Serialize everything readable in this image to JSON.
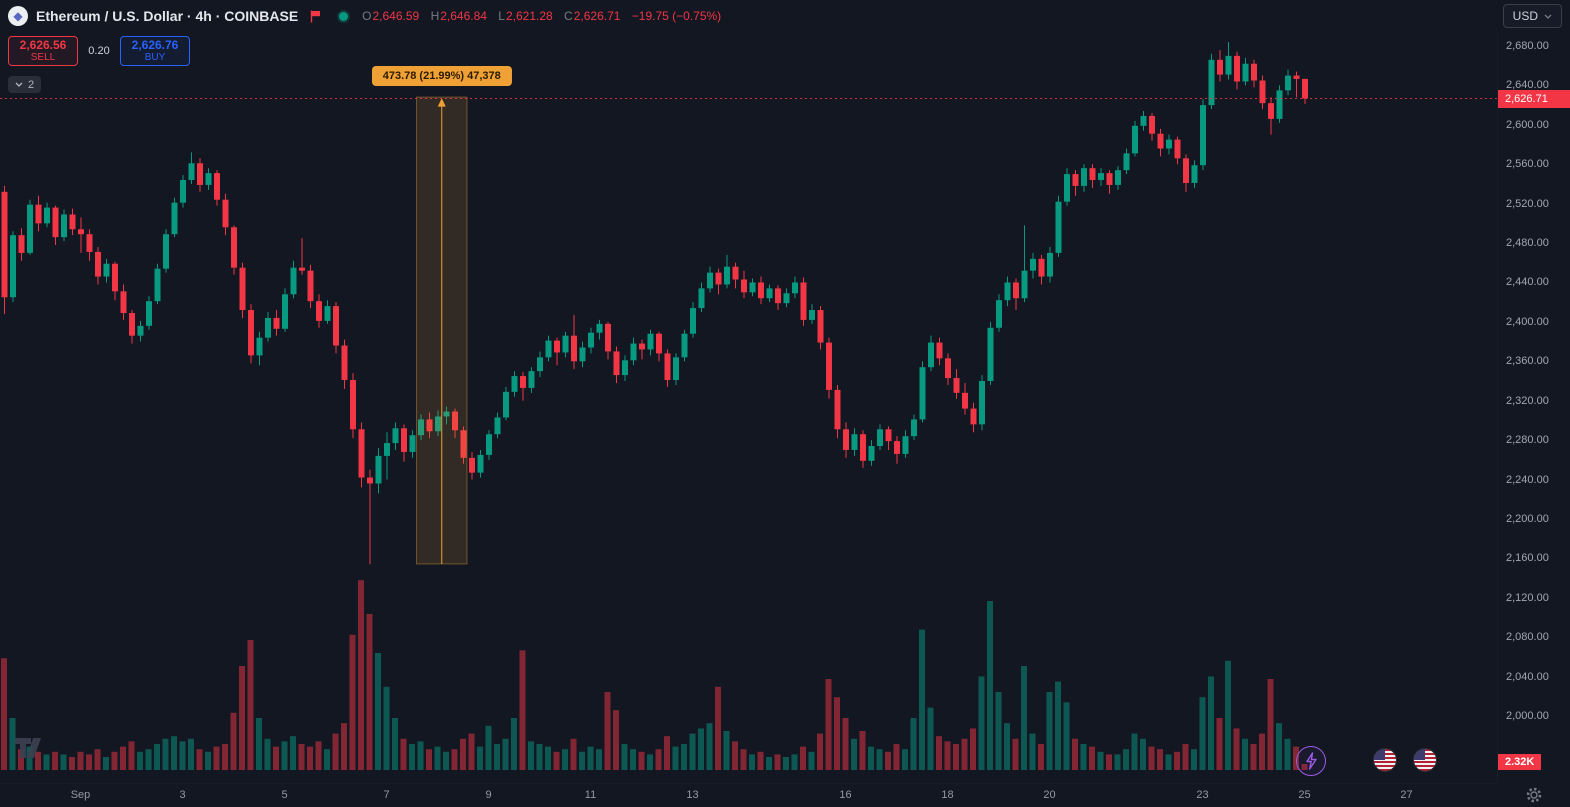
{
  "header": {
    "symbol_title": "Ethereum / U.S. Dollar · 4h · COINBASE",
    "ohlc": {
      "o_label": "O",
      "o_value": "2,646.59",
      "h_label": "H",
      "h_value": "2,646.84",
      "l_label": "L",
      "l_value": "2,621.28",
      "c_label": "C",
      "c_value": "2,626.71",
      "change": "−19.75 (−0.75%)"
    },
    "currency_button": "USD"
  },
  "trade_panel": {
    "sell_price": "2,626.56",
    "sell_label": "SELL",
    "spread": "0.20",
    "buy_price": "2,626.76",
    "buy_label": "BUY"
  },
  "drawings_chip": {
    "count": "2"
  },
  "measure_tool": {
    "label": "473.78 (21.99%) 47,378",
    "value": 473.78,
    "percent": 21.99,
    "volume": 47378,
    "from_price": 2154.32,
    "to_price": 2628.1,
    "start_index": 49,
    "end_index": 54
  },
  "price_scale": {
    "labels": [
      "2,680.00",
      "2,640.00",
      "2,600.00",
      "2,560.00",
      "2,520.00",
      "2,480.00",
      "2,440.00",
      "2,400.00",
      "2,360.00",
      "2,320.00",
      "2,280.00",
      "2,240.00",
      "2,200.00",
      "2,160.00",
      "2,120.00",
      "2,080.00",
      "2,040.00",
      "2,000.00"
    ],
    "current_price_tag": "2,626.71",
    "volume_tag": "2.32K"
  },
  "icons": {
    "ethereum_logo": "◆",
    "flag": "red-flag",
    "market_status_dot": "green-dot",
    "currency_caret": "chevron-down",
    "drawings_chevron": "chevron-down",
    "alert_lightning": "lightning-bolt",
    "event_flag": "us-flag-roundel",
    "settings_gear": "gear",
    "tradingview_watermark": "TV"
  },
  "colors": {
    "background": "#131722",
    "up": "#089981",
    "down": "#f23645",
    "buy_blue": "#2962ff",
    "measure_orange": "#f0a135",
    "text": "#d1d4dc",
    "muted_text": "#787b86",
    "axis_text": "#9598a1"
  },
  "chart_data": {
    "type": "candlestick",
    "symbol": "Ethereum / U.S. Dollar",
    "exchange": "COINBASE",
    "interval": "4h",
    "quote_currency": "USD",
    "current_price": 2626.71,
    "current_candle": {
      "open": 2646.59,
      "high": 2646.84,
      "low": 2621.28,
      "close": 2626.71,
      "change": -19.75,
      "change_pct": -0.75
    },
    "ylim": [
      1990,
      2695
    ],
    "y_tick_step": 40,
    "volume_unit": "K",
    "x_axis": {
      "labels": [
        {
          "text": "Sep",
          "index": 9
        },
        {
          "text": "3",
          "index": 21
        },
        {
          "text": "5",
          "index": 33
        },
        {
          "text": "7",
          "index": 45
        },
        {
          "text": "9",
          "index": 57
        },
        {
          "text": "11",
          "index": 69
        },
        {
          "text": "13",
          "index": 81
        },
        {
          "text": "16",
          "index": 99
        },
        {
          "text": "18",
          "index": 111
        },
        {
          "text": "20",
          "index": 123
        },
        {
          "text": "23",
          "index": 141
        },
        {
          "text": "25",
          "index": 153
        },
        {
          "text": "27",
          "index": 165
        }
      ]
    },
    "candles_format": [
      "open",
      "high",
      "low",
      "close",
      "volume_K"
    ],
    "candles": [
      [
        2532,
        2538,
        2408,
        2425,
        43
      ],
      [
        2425,
        2492,
        2420,
        2488,
        20
      ],
      [
        2488,
        2495,
        2462,
        2470,
        8
      ],
      [
        2470,
        2524,
        2468,
        2519,
        9
      ],
      [
        2519,
        2528,
        2492,
        2500,
        7
      ],
      [
        2500,
        2521,
        2496,
        2516,
        6
      ],
      [
        2516,
        2518,
        2478,
        2486,
        7
      ],
      [
        2486,
        2514,
        2482,
        2509,
        6
      ],
      [
        2509,
        2515,
        2488,
        2494,
        5
      ],
      [
        2494,
        2506,
        2470,
        2489,
        7
      ],
      [
        2489,
        2494,
        2462,
        2471,
        6
      ],
      [
        2471,
        2476,
        2438,
        2446,
        8
      ],
      [
        2446,
        2464,
        2440,
        2459,
        5
      ],
      [
        2459,
        2461,
        2422,
        2431,
        7
      ],
      [
        2431,
        2438,
        2402,
        2409,
        9
      ],
      [
        2409,
        2412,
        2378,
        2386,
        11
      ],
      [
        2386,
        2401,
        2380,
        2396,
        7
      ],
      [
        2396,
        2426,
        2392,
        2421,
        8
      ],
      [
        2421,
        2459,
        2418,
        2454,
        10
      ],
      [
        2454,
        2494,
        2450,
        2489,
        12
      ],
      [
        2489,
        2526,
        2486,
        2521,
        13
      ],
      [
        2521,
        2549,
        2516,
        2544,
        11
      ],
      [
        2544,
        2572,
        2540,
        2561,
        12
      ],
      [
        2561,
        2566,
        2532,
        2539,
        8
      ],
      [
        2539,
        2556,
        2534,
        2551,
        7
      ],
      [
        2551,
        2554,
        2518,
        2524,
        9
      ],
      [
        2524,
        2530,
        2488,
        2496,
        10
      ],
      [
        2496,
        2498,
        2448,
        2455,
        22
      ],
      [
        2455,
        2460,
        2404,
        2412,
        40
      ],
      [
        2412,
        2418,
        2358,
        2366,
        50
      ],
      [
        2366,
        2390,
        2356,
        2384,
        20
      ],
      [
        2384,
        2410,
        2380,
        2404,
        12
      ],
      [
        2404,
        2412,
        2386,
        2393,
        9
      ],
      [
        2393,
        2434,
        2390,
        2428,
        11
      ],
      [
        2428,
        2462,
        2424,
        2455,
        13
      ],
      [
        2455,
        2485,
        2448,
        2452,
        10
      ],
      [
        2452,
        2458,
        2414,
        2421,
        9
      ],
      [
        2421,
        2428,
        2394,
        2401,
        11
      ],
      [
        2401,
        2422,
        2398,
        2416,
        8
      ],
      [
        2416,
        2420,
        2368,
        2376,
        14
      ],
      [
        2376,
        2382,
        2332,
        2341,
        18
      ],
      [
        2341,
        2348,
        2282,
        2291,
        52
      ],
      [
        2291,
        2298,
        2232,
        2242,
        73
      ],
      [
        2242,
        2250,
        2154,
        2236,
        60
      ],
      [
        2236,
        2272,
        2226,
        2264,
        45
      ],
      [
        2264,
        2288,
        2240,
        2277,
        32
      ],
      [
        2277,
        2298,
        2270,
        2292,
        20
      ],
      [
        2292,
        2296,
        2258,
        2268,
        12
      ],
      [
        2268,
        2290,
        2262,
        2285,
        10
      ],
      [
        2285,
        2306,
        2280,
        2301,
        11
      ],
      [
        2301,
        2308,
        2282,
        2289,
        8
      ],
      [
        2289,
        2310,
        2284,
        2304,
        9
      ],
      [
        2304,
        2314,
        2296,
        2309,
        7
      ],
      [
        2309,
        2312,
        2282,
        2290,
        8
      ],
      [
        2290,
        2294,
        2256,
        2262,
        12
      ],
      [
        2262,
        2268,
        2240,
        2247,
        14
      ],
      [
        2247,
        2270,
        2242,
        2265,
        9
      ],
      [
        2265,
        2290,
        2260,
        2286,
        17
      ],
      [
        2286,
        2308,
        2282,
        2303,
        10
      ],
      [
        2303,
        2334,
        2300,
        2329,
        12
      ],
      [
        2329,
        2350,
        2324,
        2345,
        20
      ],
      [
        2345,
        2349,
        2320,
        2333,
        46
      ],
      [
        2333,
        2354,
        2328,
        2350,
        11
      ],
      [
        2350,
        2370,
        2344,
        2364,
        10
      ],
      [
        2364,
        2386,
        2360,
        2381,
        9
      ],
      [
        2381,
        2384,
        2356,
        2369,
        7
      ],
      [
        2369,
        2390,
        2364,
        2386,
        8
      ],
      [
        2386,
        2407,
        2352,
        2360,
        12
      ],
      [
        2360,
        2380,
        2354,
        2374,
        7
      ],
      [
        2374,
        2394,
        2368,
        2389,
        9
      ],
      [
        2389,
        2402,
        2382,
        2398,
        8
      ],
      [
        2398,
        2400,
        2362,
        2370,
        30
      ],
      [
        2370,
        2375,
        2338,
        2346,
        23
      ],
      [
        2346,
        2366,
        2340,
        2361,
        10
      ],
      [
        2361,
        2384,
        2356,
        2378,
        8
      ],
      [
        2378,
        2382,
        2362,
        2372,
        7
      ],
      [
        2372,
        2392,
        2366,
        2388,
        6
      ],
      [
        2388,
        2390,
        2360,
        2368,
        8
      ],
      [
        2368,
        2372,
        2334,
        2341,
        13
      ],
      [
        2341,
        2368,
        2336,
        2364,
        9
      ],
      [
        2364,
        2392,
        2360,
        2388,
        10
      ],
      [
        2388,
        2420,
        2384,
        2414,
        14
      ],
      [
        2414,
        2440,
        2410,
        2434,
        16
      ],
      [
        2434,
        2456,
        2430,
        2450,
        18
      ],
      [
        2450,
        2454,
        2428,
        2438,
        32
      ],
      [
        2438,
        2468,
        2434,
        2456,
        15
      ],
      [
        2456,
        2460,
        2434,
        2443,
        11
      ],
      [
        2443,
        2452,
        2424,
        2430,
        8
      ],
      [
        2430,
        2444,
        2426,
        2440,
        6
      ],
      [
        2440,
        2446,
        2418,
        2424,
        7
      ],
      [
        2424,
        2438,
        2420,
        2434,
        5
      ],
      [
        2434,
        2437,
        2412,
        2419,
        6
      ],
      [
        2419,
        2434,
        2415,
        2429,
        5
      ],
      [
        2429,
        2446,
        2424,
        2440,
        6
      ],
      [
        2440,
        2445,
        2396,
        2402,
        9
      ],
      [
        2402,
        2418,
        2398,
        2412,
        7
      ],
      [
        2412,
        2416,
        2372,
        2379,
        14
      ],
      [
        2379,
        2384,
        2322,
        2331,
        35
      ],
      [
        2331,
        2336,
        2282,
        2291,
        28
      ],
      [
        2291,
        2298,
        2262,
        2270,
        20
      ],
      [
        2270,
        2292,
        2264,
        2286,
        12
      ],
      [
        2286,
        2290,
        2252,
        2259,
        15
      ],
      [
        2259,
        2280,
        2254,
        2274,
        9
      ],
      [
        2274,
        2296,
        2270,
        2291,
        8
      ],
      [
        2291,
        2294,
        2270,
        2279,
        7
      ],
      [
        2279,
        2284,
        2256,
        2266,
        10
      ],
      [
        2266,
        2290,
        2262,
        2284,
        8
      ],
      [
        2284,
        2306,
        2280,
        2301,
        20
      ],
      [
        2301,
        2360,
        2298,
        2354,
        54
      ],
      [
        2354,
        2386,
        2350,
        2379,
        24
      ],
      [
        2379,
        2384,
        2356,
        2363,
        13
      ],
      [
        2363,
        2368,
        2336,
        2343,
        11
      ],
      [
        2343,
        2352,
        2322,
        2328,
        10
      ],
      [
        2328,
        2338,
        2306,
        2312,
        12
      ],
      [
        2312,
        2318,
        2288,
        2296,
        16
      ],
      [
        2296,
        2346,
        2290,
        2340,
        36
      ],
      [
        2340,
        2400,
        2336,
        2394,
        65
      ],
      [
        2394,
        2428,
        2390,
        2422,
        30
      ],
      [
        2422,
        2446,
        2416,
        2440,
        18
      ],
      [
        2440,
        2444,
        2412,
        2424,
        12
      ],
      [
        2424,
        2498,
        2420,
        2452,
        40
      ],
      [
        2452,
        2470,
        2444,
        2464,
        14
      ],
      [
        2464,
        2468,
        2438,
        2446,
        10
      ],
      [
        2446,
        2476,
        2440,
        2470,
        30
      ],
      [
        2470,
        2528,
        2466,
        2522,
        34
      ],
      [
        2522,
        2556,
        2518,
        2550,
        26
      ],
      [
        2550,
        2554,
        2528,
        2538,
        12
      ],
      [
        2538,
        2560,
        2532,
        2556,
        10
      ],
      [
        2556,
        2560,
        2536,
        2544,
        9
      ],
      [
        2544,
        2556,
        2538,
        2551,
        7
      ],
      [
        2551,
        2554,
        2530,
        2539,
        6
      ],
      [
        2539,
        2558,
        2534,
        2554,
        6
      ],
      [
        2554,
        2576,
        2550,
        2571,
        8
      ],
      [
        2571,
        2604,
        2568,
        2599,
        14
      ],
      [
        2599,
        2614,
        2594,
        2609,
        12
      ],
      [
        2609,
        2612,
        2584,
        2591,
        9
      ],
      [
        2591,
        2596,
        2568,
        2576,
        8
      ],
      [
        2576,
        2590,
        2570,
        2585,
        6
      ],
      [
        2585,
        2588,
        2560,
        2566,
        7
      ],
      [
        2566,
        2570,
        2532,
        2541,
        10
      ],
      [
        2541,
        2564,
        2536,
        2559,
        8
      ],
      [
        2559,
        2626,
        2554,
        2620,
        28
      ],
      [
        2620,
        2672,
        2616,
        2666,
        36
      ],
      [
        2666,
        2676,
        2644,
        2651,
        20
      ],
      [
        2651,
        2684,
        2646,
        2670,
        42
      ],
      [
        2670,
        2674,
        2636,
        2644,
        16
      ],
      [
        2644,
        2668,
        2640,
        2662,
        12
      ],
      [
        2662,
        2666,
        2638,
        2645,
        10
      ],
      [
        2645,
        2650,
        2616,
        2622,
        14
      ],
      [
        2622,
        2628,
        2590,
        2606,
        35
      ],
      [
        2606,
        2640,
        2602,
        2635,
        18
      ],
      [
        2635,
        2656,
        2630,
        2650,
        12
      ],
      [
        2650,
        2654,
        2628,
        2646.5,
        9
      ],
      [
        2646.59,
        2646.84,
        2621.28,
        2626.71,
        2.32
      ]
    ]
  }
}
